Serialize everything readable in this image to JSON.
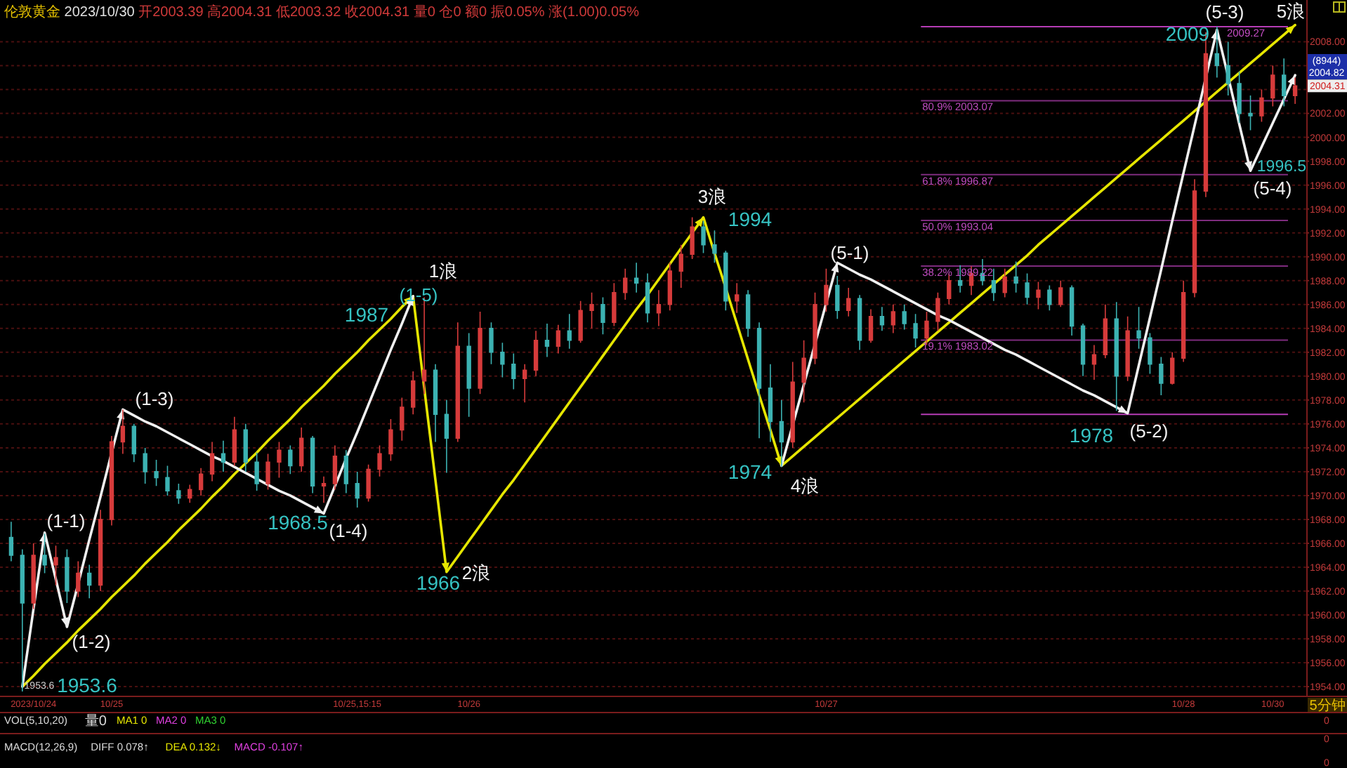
{
  "chart_data": {
    "type": "candlestick",
    "title": "伦敦黄金 2023/10/30 开2003.39 高2004.31 低2003.32 收2004.31 量0 仓0 额0 振0.05% 涨(1.00)0.05%",
    "categories": [
      null,
      null,
      "2023/10/24",
      null,
      null,
      null,
      null,
      null,
      null,
      "10/25",
      null,
      null,
      null,
      null,
      null,
      null,
      null,
      null,
      null,
      null,
      null,
      null,
      null,
      null,
      null,
      null,
      null,
      null,
      null,
      null,
      null,
      "10/25,15:15",
      null,
      null,
      null,
      null,
      null,
      null,
      null,
      null,
      null,
      "10/26",
      null,
      null,
      null,
      null,
      null,
      null,
      null,
      null,
      null,
      null,
      null,
      null,
      null,
      null,
      null,
      null,
      null,
      null,
      null,
      null,
      null,
      null,
      null,
      null,
      null,
      null,
      null,
      null,
      null,
      null,
      null,
      "10/27",
      null,
      null,
      null,
      null,
      null,
      null,
      null,
      null,
      null,
      null,
      null,
      null,
      null,
      null,
      null,
      null,
      null,
      null,
      null,
      null,
      null,
      null,
      null,
      null,
      null,
      null,
      null,
      null,
      null,
      null,
      null,
      "10/28",
      null,
      null,
      null,
      null,
      null,
      null,
      null,
      "10/30",
      null,
      null
    ],
    "ohlc": [
      [
        1966.5,
        1967.8,
        1964.5,
        1965.0
      ],
      [
        1965.0,
        1965.5,
        1953.6,
        1961.0
      ],
      [
        1961.0,
        1966.0,
        1960.5,
        1965.0
      ],
      [
        1965.0,
        1966.8,
        1963.5,
        1964.2
      ],
      [
        1964.2,
        1965.8,
        1962.5,
        1964.8
      ],
      [
        1964.8,
        1965.5,
        1961.0,
        1962.0
      ],
      [
        1962.0,
        1964.5,
        1961.5,
        1963.5
      ],
      [
        1963.5,
        1964.2,
        1961.4,
        1962.5
      ],
      [
        1962.5,
        1968.8,
        1962.0,
        1968.0
      ],
      [
        1968.0,
        1975.0,
        1967.5,
        1974.5
      ],
      [
        1974.5,
        1977.2,
        1973.5,
        1975.8
      ],
      [
        1975.8,
        1976.0,
        1972.8,
        1973.5
      ],
      [
        1973.5,
        1974.0,
        1971.0,
        1972.0
      ],
      [
        1972.0,
        1973.0,
        1970.8,
        1971.5
      ],
      [
        1971.5,
        1972.5,
        1970.0,
        1970.4
      ],
      [
        1970.4,
        1971.0,
        1969.3,
        1969.8
      ],
      [
        1969.8,
        1970.9,
        1969.4,
        1970.5
      ],
      [
        1970.5,
        1972.3,
        1970.0,
        1971.8
      ],
      [
        1971.8,
        1974.5,
        1971.2,
        1973.5
      ],
      [
        1973.5,
        1974.6,
        1972.0,
        1972.8
      ],
      [
        1972.8,
        1976.6,
        1972.5,
        1975.5
      ],
      [
        1975.5,
        1976.0,
        1972.0,
        1972.8
      ],
      [
        1972.8,
        1973.6,
        1970.4,
        1971.0
      ],
      [
        1971.0,
        1973.5,
        1970.5,
        1972.8
      ],
      [
        1972.8,
        1974.5,
        1971.5,
        1973.8
      ],
      [
        1973.8,
        1974.2,
        1971.8,
        1972.5
      ],
      [
        1972.5,
        1975.7,
        1972.0,
        1974.8
      ],
      [
        1974.8,
        1975.0,
        1970.2,
        1970.8
      ],
      [
        1970.8,
        1971.6,
        1969.4,
        1971.0
      ],
      [
        1971.0,
        1974.2,
        1970.5,
        1973.3
      ],
      [
        1973.3,
        1973.8,
        1970.2,
        1971.0
      ],
      [
        1971.0,
        1972.0,
        1969.0,
        1969.8
      ],
      [
        1969.8,
        1972.6,
        1969.5,
        1972.2
      ],
      [
        1972.2,
        1974.2,
        1971.6,
        1973.5
      ],
      [
        1973.5,
        1976.4,
        1972.9,
        1975.5
      ],
      [
        1975.5,
        1978.2,
        1974.6,
        1977.4
      ],
      [
        1977.4,
        1980.4,
        1976.8,
        1979.6
      ],
      [
        1979.6,
        1986.6,
        1978.5,
        1980.5
      ],
      [
        1980.5,
        1981.0,
        1974.5,
        1976.8
      ],
      [
        1976.8,
        1978.0,
        1971.9,
        1974.8
      ],
      [
        1974.8,
        1984.5,
        1974.5,
        1982.5
      ],
      [
        1982.5,
        1983.6,
        1976.6,
        1979.0
      ],
      [
        1979.0,
        1985.4,
        1978.5,
        1984.0
      ],
      [
        1984.0,
        1984.5,
        1981.0,
        1982.0
      ],
      [
        1982.0,
        1982.8,
        1979.9,
        1981.0
      ],
      [
        1981.0,
        1981.9,
        1978.9,
        1979.8
      ],
      [
        1979.8,
        1981.0,
        1977.8,
        1980.5
      ],
      [
        1980.5,
        1983.8,
        1980.0,
        1983.0
      ],
      [
        1983.0,
        1984.4,
        1981.6,
        1982.5
      ],
      [
        1982.5,
        1984.3,
        1981.9,
        1983.8
      ],
      [
        1983.8,
        1985.2,
        1982.3,
        1983.0
      ],
      [
        1983.0,
        1986.3,
        1982.8,
        1985.5
      ],
      [
        1985.5,
        1987.0,
        1984.0,
        1986.0
      ],
      [
        1986.0,
        1986.6,
        1983.5,
        1984.5
      ],
      [
        1984.5,
        1987.8,
        1984.2,
        1987.0
      ],
      [
        1987.0,
        1989.0,
        1986.4,
        1988.2
      ],
      [
        1988.2,
        1989.5,
        1987.0,
        1987.8
      ],
      [
        1987.8,
        1988.6,
        1984.5,
        1985.3
      ],
      [
        1985.3,
        1987.2,
        1984.2,
        1986.0
      ],
      [
        1986.0,
        1989.5,
        1985.5,
        1988.8
      ],
      [
        1988.8,
        1991.0,
        1987.4,
        1990.2
      ],
      [
        1990.2,
        1993.3,
        1989.8,
        1992.5
      ],
      [
        1992.5,
        1993.0,
        1990.3,
        1991.0
      ],
      [
        1991.0,
        1992.2,
        1989.5,
        1990.3
      ],
      [
        1990.3,
        1990.5,
        1985.5,
        1986.3
      ],
      [
        1986.3,
        1987.8,
        1985.3,
        1986.8
      ],
      [
        1986.8,
        1987.2,
        1983.3,
        1984.0
      ],
      [
        1984.0,
        1984.5,
        1974.8,
        1979.0
      ],
      [
        1979.0,
        1981.0,
        1974.5,
        1976.2
      ],
      [
        1976.2,
        1978.0,
        1972.4,
        1974.5
      ],
      [
        1974.5,
        1981.2,
        1974.0,
        1979.5
      ],
      [
        1979.5,
        1983.0,
        1977.8,
        1981.5
      ],
      [
        1981.5,
        1987.0,
        1981.0,
        1986.0
      ],
      [
        1986.0,
        1989.0,
        1985.4,
        1987.6
      ],
      [
        1987.6,
        1988.4,
        1984.8,
        1985.5
      ],
      [
        1985.5,
        1987.4,
        1985.0,
        1986.5
      ],
      [
        1986.5,
        1986.8,
        1982.2,
        1983.0
      ],
      [
        1983.0,
        1985.6,
        1982.8,
        1985.0
      ],
      [
        1985.0,
        1985.8,
        1983.8,
        1984.3
      ],
      [
        1984.3,
        1986.0,
        1983.6,
        1985.4
      ],
      [
        1985.4,
        1986.0,
        1983.9,
        1984.4
      ],
      [
        1984.4,
        1985.2,
        1982.4,
        1983.2
      ],
      [
        1983.2,
        1985.4,
        1982.6,
        1984.6
      ],
      [
        1984.6,
        1987.0,
        1983.8,
        1986.5
      ],
      [
        1986.5,
        1988.6,
        1986.0,
        1988.0
      ],
      [
        1988.0,
        1989.3,
        1987.0,
        1987.6
      ],
      [
        1987.6,
        1989.2,
        1986.8,
        1988.6
      ],
      [
        1988.6,
        1989.8,
        1987.6,
        1988.0
      ],
      [
        1988.0,
        1989.0,
        1986.3,
        1987.0
      ],
      [
        1987.0,
        1989.0,
        1986.6,
        1988.3
      ],
      [
        1988.3,
        1989.6,
        1987.0,
        1987.8
      ],
      [
        1987.8,
        1988.6,
        1986.0,
        1986.6
      ],
      [
        1986.6,
        1987.9,
        1985.6,
        1987.2
      ],
      [
        1987.2,
        1987.6,
        1985.5,
        1986.0
      ],
      [
        1986.0,
        1988.0,
        1985.8,
        1987.4
      ],
      [
        1987.4,
        1987.6,
        1983.4,
        1984.2
      ],
      [
        1984.2,
        1984.4,
        1980.0,
        1981.0
      ],
      [
        1981.0,
        1982.6,
        1979.7,
        1981.8
      ],
      [
        1981.8,
        1986.0,
        1981.5,
        1984.8
      ],
      [
        1984.8,
        1986.2,
        1977.1,
        1980.0
      ],
      [
        1980.0,
        1985.0,
        1979.6,
        1983.8
      ],
      [
        1983.8,
        1985.8,
        1982.3,
        1983.2
      ],
      [
        1983.2,
        1983.6,
        1980.2,
        1981.0
      ],
      [
        1981.0,
        1981.6,
        1978.4,
        1979.4
      ],
      [
        1979.4,
        1982.0,
        1979.3,
        1981.5
      ],
      [
        1981.5,
        1988.0,
        1981.2,
        1987.0
      ],
      [
        1987.0,
        1996.5,
        1986.6,
        1995.5
      ],
      [
        1995.5,
        2008.8,
        1995.0,
        2007.0
      ],
      [
        2007.0,
        2009.27,
        2005.0,
        2006.0
      ],
      [
        2006.0,
        2008.0,
        2003.5,
        2004.5
      ],
      [
        2004.5,
        2005.5,
        2001.2,
        2002.0
      ],
      [
        2002.0,
        2003.5,
        2000.6,
        2001.8
      ],
      [
        2001.8,
        2004.0,
        2001.3,
        2003.3
      ],
      [
        2003.3,
        2006.0,
        2002.6,
        2005.2
      ],
      [
        2005.2,
        2006.6,
        2002.6,
        2003.5
      ],
      [
        2003.5,
        2005.0,
        2002.8,
        2004.31
      ]
    ],
    "colors": [
      "#3cb2b2",
      "#3cb2b2",
      "#d63b3b",
      "#3cb2b2",
      "#d63b3b",
      "#3cb2b2",
      "#d63b3b",
      "#3cb2b2",
      "#d63b3b",
      "#d63b3b",
      "#d63b3b",
      "#3cb2b2",
      "#3cb2b2",
      "#3cb2b2",
      "#3cb2b2",
      "#3cb2b2",
      "#d63b3b",
      "#d63b3b",
      "#d63b3b",
      "#3cb2b2",
      "#d63b3b",
      "#3cb2b2",
      "#3cb2b2",
      "#d63b3b",
      "#d63b3b",
      "#3cb2b2",
      "#d63b3b",
      "#3cb2b2",
      "#d63b3b",
      "#d63b3b",
      "#3cb2b2",
      "#3cb2b2",
      "#d63b3b",
      "#d63b3b",
      "#d63b3b",
      "#d63b3b",
      "#d63b3b",
      "#d63b3b",
      "#3cb2b2",
      "#3cb2b2",
      "#d63b3b",
      "#3cb2b2",
      "#d63b3b",
      "#3cb2b2",
      "#3cb2b2",
      "#3cb2b2",
      "#d63b3b",
      "#d63b3b",
      "#3cb2b2",
      "#d63b3b",
      "#3cb2b2",
      "#d63b3b",
      "#d63b3b",
      "#3cb2b2",
      "#d63b3b",
      "#d63b3b",
      "#3cb2b2",
      "#3cb2b2",
      "#d63b3b",
      "#d63b3b",
      "#d63b3b",
      "#d63b3b",
      "#3cb2b2",
      "#3cb2b2",
      "#3cb2b2",
      "#d63b3b",
      "#3cb2b2",
      "#3cb2b2",
      "#3cb2b2",
      "#3cb2b2",
      "#d63b3b",
      "#d63b3b",
      "#d63b3b",
      "#d63b3b",
      "#3cb2b2",
      "#d63b3b",
      "#3cb2b2",
      "#d63b3b",
      "#3cb2b2",
      "#d63b3b",
      "#3cb2b2",
      "#3cb2b2",
      "#d63b3b",
      "#d63b3b",
      "#d63b3b",
      "#3cb2b2",
      "#d63b3b",
      "#3cb2b2",
      "#3cb2b2",
      "#d63b3b",
      "#3cb2b2",
      "#3cb2b2",
      "#d63b3b",
      "#3cb2b2",
      "#d63b3b",
      "#3cb2b2",
      "#3cb2b2",
      "#d63b3b",
      "#d63b3b",
      "#3cb2b2",
      "#d63b3b",
      "#3cb2b2",
      "#3cb2b2",
      "#3cb2b2",
      "#d63b3b",
      "#d63b3b",
      "#d63b3b",
      "#d63b3b",
      "#3cb2b2",
      "#3cb2b2",
      "#3cb2b2",
      "#3cb2b2",
      "#d63b3b",
      "#d63b3b",
      "#3cb2b2",
      "#d63b3b"
    ],
    "ylim": [
      1953.3,
      2011.5
    ],
    "yticks": [
      {
        "value": 1954,
        "label": "1954.00"
      },
      {
        "value": 1956,
        "label": "1956.00"
      },
      {
        "value": 1958,
        "label": "1958.00"
      },
      {
        "value": 1960,
        "label": "1960.00"
      },
      {
        "value": 1962,
        "label": "1962.00"
      },
      {
        "value": 1964,
        "label": "1964.00"
      },
      {
        "value": 1966,
        "label": "1966.00"
      },
      {
        "value": 1968,
        "label": "1968.00"
      },
      {
        "value": 1970,
        "label": "1970.00"
      },
      {
        "value": 1972,
        "label": "1972.00"
      },
      {
        "value": 1974,
        "label": "1974.00"
      },
      {
        "value": 1976,
        "label": "1976.00"
      },
      {
        "value": 1978,
        "label": "1978.00"
      },
      {
        "value": 1980,
        "label": "1980.00"
      },
      {
        "value": 1982,
        "label": "1982.00"
      },
      {
        "value": 1984,
        "label": "1984.00"
      },
      {
        "value": 1986,
        "label": "1986.00"
      },
      {
        "value": 1988,
        "label": "1988.00"
      },
      {
        "value": 1990,
        "label": "1990.00"
      },
      {
        "value": 1992,
        "label": "1992.00"
      },
      {
        "value": 1994,
        "label": "1994.00"
      },
      {
        "value": 1996,
        "label": "1996.00"
      },
      {
        "value": 1998,
        "label": "1998.00"
      },
      {
        "value": 2000,
        "label": "2000.00"
      },
      {
        "value": 2002,
        "label": "2002.00"
      },
      {
        "value": 2004,
        "label": null
      },
      {
        "value": 2006,
        "label": null
      },
      {
        "value": 2008,
        "label": "2008.00"
      }
    ],
    "grid": "y",
    "series": [
      {
        "type": "line",
        "color": "#e6e600",
        "values": [
          null,
          1954.0,
          1954.9,
          1955.9,
          1956.8,
          1957.7,
          1958.7,
          1959.6,
          1960.5,
          1961.5,
          1962.4,
          1963.3,
          1964.3,
          1965.2,
          1966.1,
          1967.1,
          1968.0,
          1968.9,
          1969.9,
          1970.8,
          1971.8,
          1972.7,
          1973.6,
          1974.6,
          1975.5,
          1976.4,
          1977.4,
          1978.3,
          1979.2,
          1980.2,
          1981.1,
          1982.0,
          1983.0,
          1983.9,
          1984.8,
          1985.8,
          1986.7,
          1979.0,
          1971.3,
          1963.6,
          1964.9,
          1966.2,
          1967.5,
          1968.8,
          1970.1,
          1971.3,
          1972.6,
          1973.9,
          1975.2,
          1976.5,
          1977.8,
          1979.1,
          1980.4,
          1981.7,
          1983.0,
          1984.3,
          1985.6,
          1986.8,
          1988.1,
          1989.4,
          1990.7,
          1992.0,
          1993.3,
          1990.3,
          1987.4,
          1984.4,
          1981.4,
          1978.4,
          1975.5,
          1972.5,
          1973.3,
          1974.1,
          1974.9,
          1975.7,
          1976.5,
          1977.3,
          1978.1,
          1978.9,
          1979.7,
          1980.5,
          1981.3,
          1982.1,
          1982.9,
          1983.7,
          1984.5,
          1985.3,
          1986.1,
          1986.9,
          1987.7,
          1988.5,
          1989.3,
          1990.1,
          1991.0,
          1991.8,
          1992.6,
          1993.4,
          1994.2,
          1995.0,
          1995.8,
          1996.6,
          1997.4,
          1998.2,
          1999.0,
          1999.8,
          2000.6,
          2001.4,
          2002.2,
          2003.0,
          2003.8,
          2004.6,
          2005.4,
          2006.2,
          2007.0,
          2007.8,
          2008.6,
          2009.4
        ]
      },
      {
        "type": "line",
        "color": "#f0f0f0",
        "values": [
          null,
          1954.0,
          1960.5,
          1966.9,
          1963.0,
          1959.0,
          1962.6,
          1966.3,
          1969.9,
          1973.6,
          1977.2,
          1976.7,
          1976.2,
          1975.8,
          1975.3,
          1974.8,
          1974.3,
          1973.8,
          1973.3,
          1972.9,
          1972.4,
          1971.9,
          1971.4,
          1970.9,
          1970.4,
          1970.0,
          1969.5,
          1969.0,
          1968.5,
          1970.8,
          1973.1,
          1975.3,
          1977.6,
          1979.9,
          1982.2,
          1984.4,
          1986.7,
          null,
          null,
          null,
          null,
          null,
          null,
          null,
          null,
          null,
          null,
          null,
          null,
          null,
          null,
          null,
          null,
          null,
          null,
          null,
          null,
          null,
          null,
          null,
          null,
          null,
          null,
          null,
          null,
          null,
          null,
          null,
          null,
          null,
          null,
          null,
          null,
          null,
          null,
          null,
          null,
          null,
          null,
          null,
          null,
          null,
          null,
          null,
          null,
          null,
          null,
          null,
          null,
          null,
          null,
          null,
          null,
          null,
          null,
          null,
          null,
          null,
          null,
          null,
          null,
          null,
          null,
          null,
          null,
          null,
          null,
          null,
          null,
          null,
          null,
          null,
          null,
          null,
          null,
          null
        ]
      },
      {
        "type": "line",
        "color": "#f0f0f0",
        "values": [
          null,
          null,
          null,
          null,
          null,
          null,
          null,
          null,
          null,
          null,
          null,
          null,
          null,
          null,
          null,
          null,
          null,
          null,
          null,
          null,
          null,
          null,
          null,
          null,
          null,
          null,
          null,
          null,
          null,
          null,
          null,
          null,
          null,
          null,
          null,
          null,
          null,
          null,
          null,
          null,
          null,
          null,
          null,
          null,
          null,
          null,
          null,
          null,
          null,
          null,
          null,
          null,
          null,
          null,
          null,
          null,
          null,
          null,
          null,
          null,
          null,
          null,
          null,
          null,
          null,
          null,
          null,
          null,
          null,
          1972.5,
          1975.9,
          1979.3,
          1982.7,
          1986.1,
          1989.5,
          1989.0,
          1988.5,
          1988.1,
          1987.6,
          1987.1,
          1986.6,
          1986.1,
          1985.6,
          1985.1,
          1984.7,
          1984.2,
          1983.7,
          1983.2,
          1982.7,
          1982.2,
          1981.8,
          1981.3,
          1980.8,
          1980.3,
          1979.8,
          1979.3,
          1978.8,
          1978.4,
          1977.9,
          1977.4,
          1976.9,
          1980.9,
          1984.9,
          1988.9,
          1993.0,
          1997.0,
          2001.0,
          2005.0,
          2009.0,
          2005.1,
          2001.1,
          1997.2,
          1999.2,
          2001.2,
          2003.2,
          2005.2
        ]
      }
    ],
    "ref_lines": [
      {
        "axis": "y",
        "value": 2009.27,
        "color": "#b63cb6"
      },
      {
        "axis": "y",
        "value": 2003.07,
        "label": "80.9% 2003.07",
        "color": "#7e2c7e"
      },
      {
        "axis": "y",
        "value": 1996.87,
        "label": "61.8% 1996.87",
        "color": "#7e2c7e"
      },
      {
        "axis": "y",
        "value": 1993.04,
        "label": "50.0% 1993.04",
        "color": "#7e2c7e"
      },
      {
        "axis": "y",
        "value": 1989.22,
        "label": "38.2% 1989.22",
        "color": "#7e2c7e"
      },
      {
        "axis": "y",
        "value": 1983.02,
        "label": "19.1% 1983.02",
        "color": "#7e2c7e"
      },
      {
        "axis": "y",
        "value": 1976.8,
        "color": "#b63cb6"
      }
    ],
    "annotations": [
      "1953.6",
      "1968.5",
      "(1-5)",
      "1987",
      "1966",
      "1994",
      "1974",
      "1978",
      "2009",
      "1996.5",
      "(1-1)",
      "(1-2)",
      "(1-3)",
      "(1-4)",
      "1浪",
      "2浪",
      "3浪",
      "4浪",
      "(5-1)",
      "(5-2)",
      "(5-3)",
      "(5-4)",
      "5浪",
      "2009.27",
      "1953.6",
      "(8944)",
      "2004.82",
      "VOL(5,10,20)",
      "量0",
      "MA1 0",
      "MA2 0",
      "MA3 0",
      "5分钟",
      "0",
      "0",
      "0",
      "MACD(12,26,9)",
      "DIFF 0.078↑",
      "DEA 0.132↓",
      "MACD -0.107↑",
      {
        "text": "2004.31",
        "y": 2004.31
      }
    ]
  }
}
